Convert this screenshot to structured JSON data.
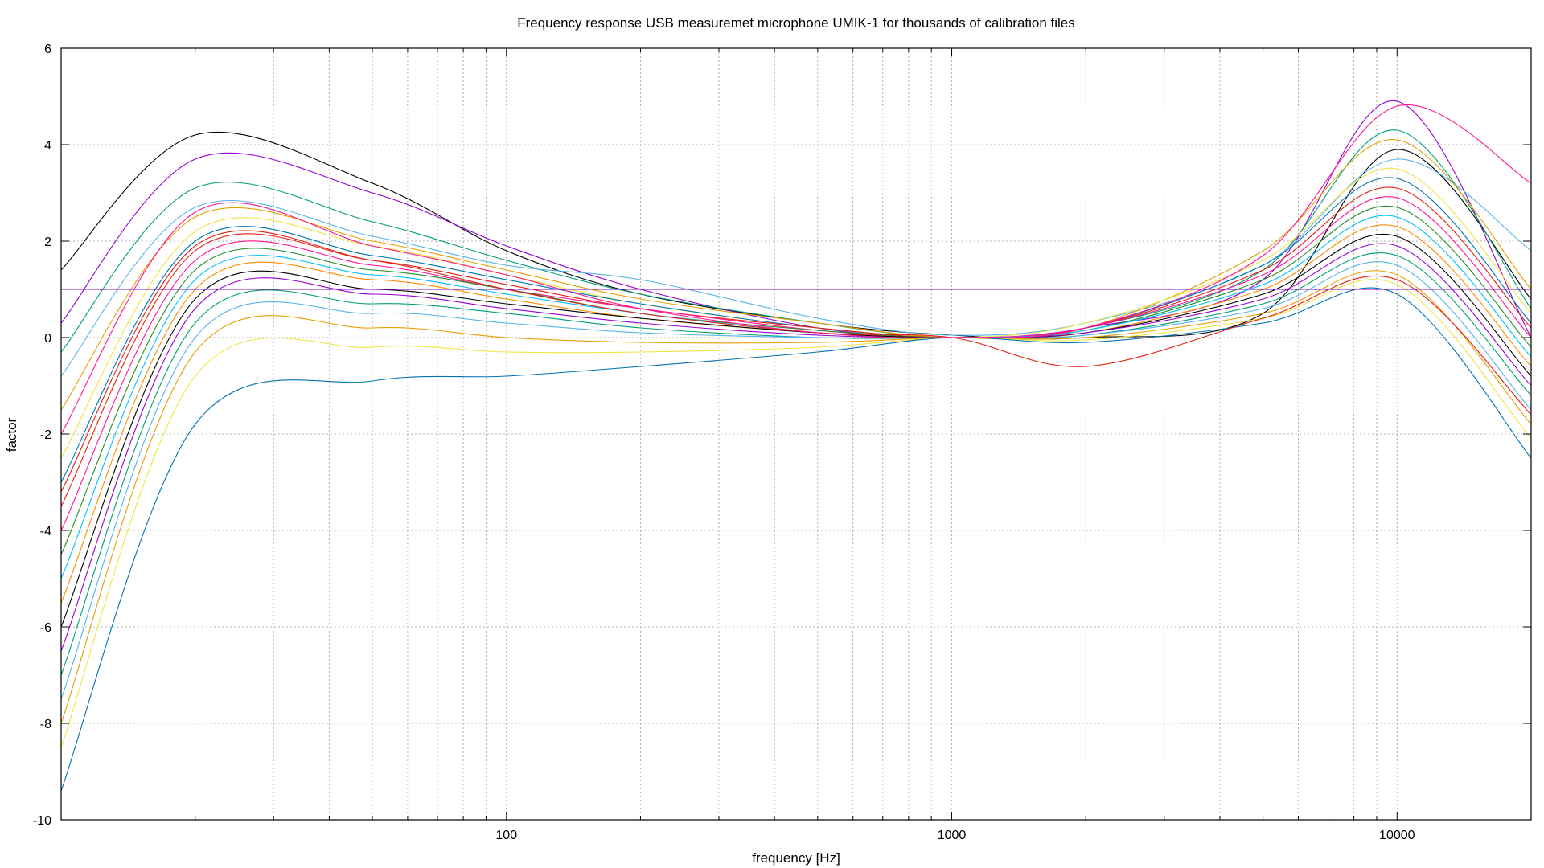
{
  "chart_data": {
    "type": "line",
    "title": "Frequency response USB measuremet microphone UMIK-1 for thousands of calibration files",
    "xlabel": "frequency [Hz]",
    "ylabel": "factor",
    "x_scale": "log",
    "xlim": [
      10,
      20000
    ],
    "ylim": [
      -10,
      6
    ],
    "x_tick_labels": [
      "100",
      "1000",
      "10000"
    ],
    "x_tick_values": [
      100,
      1000,
      10000
    ],
    "y_tick_labels": [
      "6",
      "4",
      "2",
      "0",
      "-2",
      "-4",
      "-6",
      "-8",
      "-10"
    ],
    "y_tick_values": [
      6,
      4,
      2,
      0,
      -2,
      -4,
      -6,
      -8,
      -10
    ],
    "grid": true,
    "legend": "none",
    "palette": [
      "#000000",
      "#9400d3",
      "#009e73",
      "#56b4e9",
      "#e69f00",
      "#f0e442",
      "#0072b2",
      "#e51e10",
      "#ff1493",
      "#228b22",
      "#00bfff",
      "#ff8c00"
    ],
    "x": [
      10,
      20,
      50,
      100,
      200,
      500,
      1000,
      2000,
      5000,
      10000,
      20000
    ],
    "series": [
      {
        "values": [
          1.4,
          4.2,
          3.2,
          1.8,
          0.9,
          0.3,
          0.05,
          0.0,
          0.5,
          3.9,
          0.8
        ]
      },
      {
        "values": [
          0.3,
          3.7,
          3.0,
          1.9,
          1.0,
          0.2,
          0.0,
          0.2,
          1.2,
          4.9,
          0.0
        ]
      },
      {
        "values": [
          -0.3,
          3.1,
          2.4,
          1.6,
          0.9,
          0.3,
          0.0,
          0.2,
          1.4,
          4.3,
          0.6
        ]
      },
      {
        "values": [
          -0.8,
          2.7,
          2.1,
          1.5,
          1.2,
          0.4,
          0.05,
          0.3,
          1.5,
          3.7,
          1.8
        ]
      },
      {
        "values": [
          -1.5,
          2.5,
          2.0,
          1.4,
          0.8,
          0.3,
          0.0,
          0.2,
          1.8,
          4.1,
          1.0
        ]
      },
      {
        "values": [
          -2.5,
          2.2,
          1.9,
          1.3,
          0.7,
          0.2,
          0.0,
          0.3,
          1.6,
          3.5,
          0.5
        ]
      },
      {
        "values": [
          -3.0,
          2.0,
          1.7,
          1.2,
          0.7,
          0.2,
          0.0,
          0.2,
          1.5,
          3.3,
          0.3
        ]
      },
      {
        "values": [
          -3.5,
          1.8,
          1.6,
          1.1,
          0.6,
          0.2,
          0.0,
          0.2,
          1.4,
          3.1,
          0.2
        ]
      },
      {
        "values": [
          -4.0,
          1.6,
          1.5,
          1.0,
          0.6,
          0.15,
          0.0,
          0.2,
          1.3,
          2.9,
          0.0
        ]
      },
      {
        "values": [
          -4.5,
          1.4,
          1.4,
          1.0,
          0.5,
          0.15,
          0.0,
          0.15,
          1.2,
          2.7,
          -0.2
        ]
      },
      {
        "values": [
          -5.0,
          1.2,
          1.3,
          0.9,
          0.5,
          0.1,
          0.0,
          0.15,
          1.1,
          2.5,
          -0.4
        ]
      },
      {
        "values": [
          -5.5,
          1.0,
          1.2,
          0.8,
          0.4,
          0.1,
          0.0,
          0.1,
          1.0,
          2.3,
          -0.6
        ]
      },
      {
        "values": [
          -6.0,
          0.8,
          1.0,
          0.7,
          0.4,
          0.1,
          0.0,
          0.1,
          0.9,
          2.1,
          -0.8
        ]
      },
      {
        "values": [
          -6.5,
          0.6,
          0.9,
          0.6,
          0.3,
          0.05,
          0.0,
          0.1,
          0.8,
          1.9,
          -1.0
        ]
      },
      {
        "values": [
          -7.0,
          0.3,
          0.7,
          0.5,
          0.2,
          0.0,
          0.0,
          0.05,
          0.7,
          1.7,
          -1.2
        ]
      },
      {
        "values": [
          -7.5,
          0.0,
          0.5,
          0.3,
          0.1,
          0.0,
          0.0,
          0.05,
          0.6,
          1.5,
          -1.5
        ]
      },
      {
        "values": [
          -8.0,
          -0.3,
          0.2,
          0.0,
          -0.1,
          -0.1,
          0.0,
          0.0,
          0.5,
          1.3,
          -1.8
        ]
      },
      {
        "values": [
          -8.5,
          -0.8,
          -0.2,
          -0.3,
          -0.3,
          -0.2,
          0.0,
          -0.05,
          0.4,
          1.1,
          -2.1
        ]
      },
      {
        "values": [
          -9.4,
          -1.8,
          -0.9,
          -0.8,
          -0.6,
          -0.3,
          0.0,
          -0.1,
          0.3,
          0.9,
          -2.5
        ]
      },
      {
        "values": [
          -3.2,
          1.9,
          1.6,
          1.0,
          0.5,
          0.1,
          0.0,
          -0.6,
          0.4,
          1.2,
          -1.6
        ]
      },
      {
        "values": [
          -2.0,
          2.6,
          1.9,
          1.3,
          0.6,
          0.1,
          0.0,
          0.2,
          1.7,
          4.8,
          3.2
        ]
      },
      {
        "values": [
          1.0,
          1.0,
          1.0,
          1.0,
          1.0,
          1.0,
          1.0,
          1.0,
          1.0,
          1.0,
          1.0
        ]
      }
    ]
  }
}
